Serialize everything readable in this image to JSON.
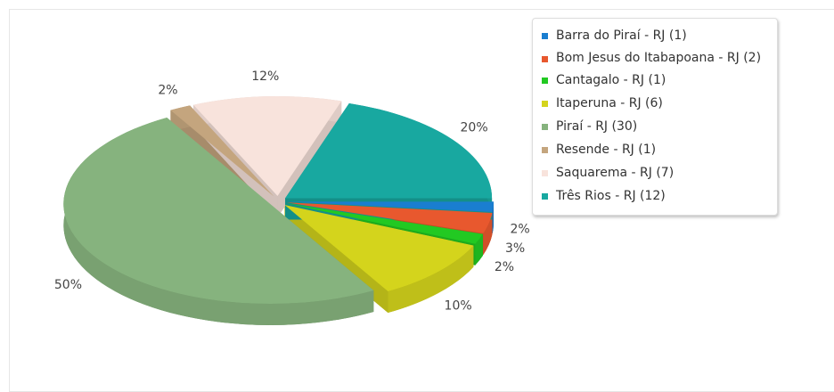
{
  "chart_data": {
    "type": "pie",
    "categories": [
      "Barra do Piraí - RJ (1)",
      "Bom Jesus do Itabapoana - RJ (2)",
      "Cantagalo - RJ (1)",
      "Itaperuna - RJ (6)",
      "Piraí - RJ (30)",
      "Resende - RJ (1)",
      "Saquarema - RJ (7)",
      "Três Rios - RJ (12)"
    ],
    "values": [
      1.67,
      3.33,
      1.67,
      10,
      50,
      1.67,
      11.67,
      20
    ],
    "value_labels": [
      "2%",
      "3%",
      "2%",
      "10%",
      "50%",
      "2%",
      "12%",
      "20%"
    ],
    "colors": [
      "#1a7ed0",
      "#e8582e",
      "#22c922",
      "#d4d41c",
      "#86b37e",
      "#c4a57e",
      "#f8e3dc",
      "#18a8a0"
    ],
    "legend": "top-right"
  }
}
